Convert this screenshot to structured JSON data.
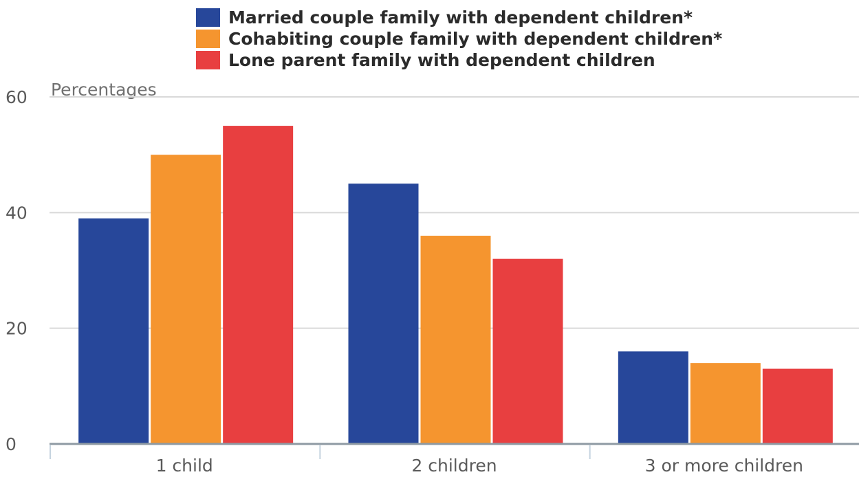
{
  "chart_data": {
    "type": "bar",
    "categories": [
      "1 child",
      "2 children",
      "3 or more children"
    ],
    "series": [
      {
        "name": "Married couple family with dependent children*",
        "values": [
          39,
          45,
          16
        ],
        "color": "#27479a"
      },
      {
        "name": "Cohabiting couple family with dependent children*",
        "values": [
          50,
          36,
          14
        ],
        "color": "#f5952f"
      },
      {
        "name": "Lone parent family with dependent children",
        "values": [
          55,
          32,
          13
        ],
        "color": "#e83f40"
      }
    ],
    "title": "",
    "xlabel": "",
    "ylabel": "Percentages",
    "ylim": [
      0,
      60
    ],
    "yticks": [
      0,
      20,
      40,
      60
    ],
    "grid": true,
    "legend_position": "top"
  }
}
